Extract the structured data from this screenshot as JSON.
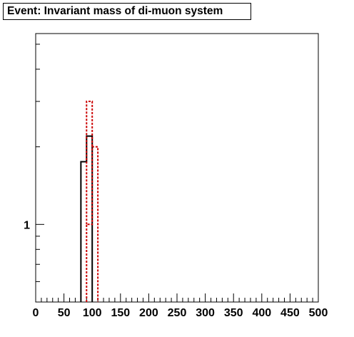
{
  "title": "Event: Invariant mass of di-muon system",
  "colors": {
    "series_solid": "#000000",
    "series_dashed": "#cc0000",
    "frame": "#000000",
    "background": "#ffffff"
  },
  "chart_data": {
    "type": "histogram",
    "title": "Event: Invariant mass of di-muon system",
    "xlabel": "",
    "ylabel": "",
    "xlim": [
      0,
      500
    ],
    "ylim": [
      0.5,
      5.5
    ],
    "y_scale": "log",
    "grid": false,
    "legend": "none",
    "x_ticks": [
      0,
      50,
      100,
      150,
      200,
      250,
      300,
      350,
      400,
      450,
      500
    ],
    "x_tick_labels": [
      "0",
      "50",
      "100",
      "150",
      "200",
      "250",
      "300",
      "350",
      "400",
      "450",
      "500"
    ],
    "y_tick_labels": [
      {
        "value": 1,
        "label": "1"
      }
    ],
    "bin_width": 10,
    "series": [
      {
        "style": "solid",
        "color": "#000000",
        "bins": [
          {
            "x0": 80,
            "x1": 90,
            "y": 1.75
          },
          {
            "x0": 90,
            "x1": 100,
            "y": 2.2
          }
        ]
      },
      {
        "style": "dashed",
        "color": "#cc0000",
        "bins": [
          {
            "x0": 90,
            "x1": 100,
            "y": 1.0
          },
          {
            "x0": 100,
            "x1": 110,
            "y": 2.0
          }
        ],
        "outline": [
          {
            "x0": 90,
            "x1": 100,
            "y": 3.0
          }
        ]
      }
    ]
  }
}
